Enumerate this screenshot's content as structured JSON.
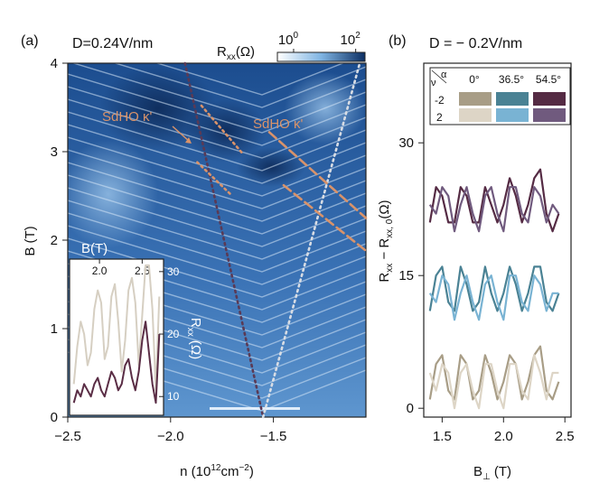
{
  "chart_data": [
    {
      "type": "heatmap",
      "panel_label": "(a)",
      "title": "D=0.24V/nm",
      "xlabel": "n (10^12 cm^-2)",
      "xlabel_parts": {
        "base": "n (10",
        "exp1": "12",
        "mid": "cm",
        "exp2": "−2",
        "end": ")"
      },
      "ylabel": "B (T)",
      "xlim": [
        -2.5,
        -1.05
      ],
      "ylim": [
        0,
        4
      ],
      "xticks": [
        -2.5,
        -2.0,
        -1.5
      ],
      "xtick_labels": [
        "−2.5",
        "−2.0",
        "−1.5"
      ],
      "yticks": [
        0,
        1,
        2,
        3,
        4
      ],
      "colorbar": {
        "label": "Rxx(Ω)",
        "label_parts": {
          "base": "R",
          "sub": "xx",
          "end": "(Ω)"
        },
        "scale": "log",
        "ticks": [
          {
            "base": "10",
            "exp": "0",
            "value": 1
          },
          {
            "base": "10",
            "exp": "2",
            "value": 100
          }
        ],
        "range": [
          0.3,
          200
        ],
        "color_low": "#ffffff",
        "color_high": "#0d2f63"
      },
      "annotations": [
        {
          "text": "SdHO κ'",
          "color": "#d9936a"
        },
        {
          "text": "SdHO κ'",
          "color": "#d9936a"
        }
      ],
      "guide_lines": [
        {
          "style": "dotted",
          "color": "#5a3a55",
          "points": [
            [
              -1.93,
              4.0
            ],
            [
              -1.55,
              0.0
            ]
          ]
        },
        {
          "style": "dotted",
          "color": "#d8dde5",
          "points": [
            [
              -1.55,
              0.0
            ],
            [
              -1.08,
              4.0
            ]
          ]
        },
        {
          "style": "dotted",
          "color": "#d9936a",
          "points": [
            [
              -1.85,
              3.52
            ],
            [
              -1.65,
              2.98
            ]
          ]
        },
        {
          "style": "dotted",
          "color": "#d9936a",
          "points": [
            [
              -1.87,
              2.88
            ],
            [
              -1.7,
              2.5
            ]
          ]
        },
        {
          "style": "dashed",
          "color": "#d9936a",
          "points": [
            [
              -1.52,
              3.22
            ],
            [
              -1.05,
              2.25
            ]
          ]
        },
        {
          "style": "dashed",
          "color": "#d9936a",
          "points": [
            [
              -1.45,
              2.62
            ],
            [
              -1.05,
              1.88
            ]
          ]
        }
      ],
      "inset": {
        "type": "line",
        "top_xlabel": "B(T)",
        "right_ylabel": "Rxx (Ω)",
        "right_ylabel_parts": {
          "base": "R",
          "sub": "xx",
          "end": " (Ω)"
        },
        "xlim": [
          1.65,
          2.75
        ],
        "ylim": [
          7,
          32
        ],
        "xticks": [
          2.0,
          2.5
        ],
        "xtick_labels": [
          "2.0",
          "2.5"
        ],
        "yticks": [
          10,
          20,
          30
        ],
        "series": [
          {
            "name": "ν = 2 (0°)",
            "color": "#d6cfc2",
            "x": [
              1.7,
              1.74,
              1.78,
              1.82,
              1.86,
              1.9,
              1.94,
              1.98,
              2.02,
              2.06,
              2.1,
              2.14,
              2.18,
              2.22,
              2.26,
              2.3,
              2.34,
              2.38,
              2.42,
              2.46,
              2.5,
              2.54,
              2.58,
              2.62,
              2.66,
              2.7
            ],
            "values": [
              12,
              18,
              22,
              20,
              15,
              17,
              24,
              27,
              25,
              16,
              18,
              26,
              28,
              22,
              14,
              19,
              27,
              29,
              25,
              15,
              23,
              31,
              31,
              24,
              11,
              26
            ]
          },
          {
            "name": "ν = -2 (54.5°)",
            "color": "#5a2d45",
            "x": [
              1.7,
              1.74,
              1.78,
              1.82,
              1.86,
              1.9,
              1.94,
              1.98,
              2.02,
              2.06,
              2.1,
              2.14,
              2.18,
              2.22,
              2.26,
              2.3,
              2.34,
              2.38,
              2.42,
              2.46,
              2.5,
              2.54,
              2.58,
              2.62,
              2.66,
              2.7
            ],
            "values": [
              9,
              11,
              10,
              12,
              11,
              10,
              12,
              13,
              11,
              10,
              12,
              14,
              13,
              11,
              12,
              15,
              16,
              13,
              11,
              14,
              19,
              22,
              17,
              12,
              9,
              20
            ]
          }
        ]
      }
    },
    {
      "type": "line",
      "panel_label": "(b)",
      "title": "D = − 0.2V/nm",
      "xlabel": "B⊥ (T)",
      "xlabel_parts": {
        "base": "B",
        "sub": "⊥",
        "end": " (T)"
      },
      "ylabel": "Rxx − Rxx,0(Ω)",
      "ylabel_parts": {
        "base": "R",
        "sub1": "xx",
        "mid": " − R",
        "sub2": "xx, 0",
        "end": "(Ω)"
      },
      "xlim": [
        1.35,
        2.55
      ],
      "ylim": [
        -1,
        39
      ],
      "xticks": [
        1.5,
        2.0,
        2.5
      ],
      "xtick_labels": [
        "1.5",
        "2.0",
        "2.5"
      ],
      "yticks": [
        0,
        15,
        30
      ],
      "legend": {
        "placement": "top",
        "header_nu": "ν",
        "header_alpha": "α",
        "columns": [
          "0°",
          "36.5°",
          "54.5°"
        ],
        "rows": [
          {
            "label": "-2",
            "colors": [
              "#a89d86",
              "#4a8294",
              "#552b44"
            ]
          },
          {
            "label": "2",
            "colors": [
              "#ddd5c6",
              "#79b3d3",
              "#705a7e"
            ]
          }
        ]
      },
      "x": [
        1.4,
        1.45,
        1.5,
        1.55,
        1.6,
        1.65,
        1.7,
        1.75,
        1.8,
        1.85,
        1.9,
        1.95,
        2.0,
        2.05,
        2.1,
        2.15,
        2.2,
        2.25,
        2.3,
        2.35,
        2.4,
        2.45
      ],
      "series": [
        {
          "name": "ν=-2, 0°",
          "color": "#a89d86",
          "values": [
            1,
            5,
            6,
            2,
            1,
            6,
            5,
            1,
            2,
            6,
            4,
            1,
            3,
            6,
            5,
            1,
            3,
            6,
            7,
            2,
            1,
            3
          ]
        },
        {
          "name": "ν=2, 0°",
          "color": "#ddd5c6",
          "values": [
            4,
            2,
            5,
            4,
            0,
            4,
            5,
            2,
            0,
            5,
            5,
            2,
            0,
            5,
            5,
            2,
            1,
            6,
            4,
            1,
            4,
            4
          ]
        },
        {
          "name": "ν=-2, 36.5°",
          "color": "#4a8294",
          "values": [
            11,
            15,
            16,
            12,
            11,
            16,
            14,
            11,
            12,
            16,
            13,
            11,
            13,
            16,
            14,
            11,
            13,
            16,
            16,
            12,
            11,
            13
          ]
        },
        {
          "name": "ν=2, 36.5°",
          "color": "#79b3d3",
          "values": [
            13,
            12,
            15,
            14,
            10,
            13,
            15,
            12,
            10,
            14,
            15,
            12,
            10,
            15,
            15,
            12,
            11,
            15,
            14,
            11,
            13,
            13
          ]
        },
        {
          "name": "ν=-2, 54.5°",
          "color": "#552b44",
          "values": [
            21,
            25,
            24,
            21,
            21,
            25,
            24,
            21,
            21,
            25,
            23,
            21,
            23,
            26,
            24,
            21,
            23,
            26,
            27,
            22,
            20,
            22
          ]
        },
        {
          "name": "ν=2, 54.5°",
          "color": "#705a7e",
          "values": [
            23,
            22,
            25,
            24,
            20,
            23,
            25,
            22,
            20,
            24,
            25,
            22,
            20,
            25,
            25,
            22,
            21,
            25,
            24,
            21,
            23,
            22
          ]
        }
      ]
    }
  ]
}
